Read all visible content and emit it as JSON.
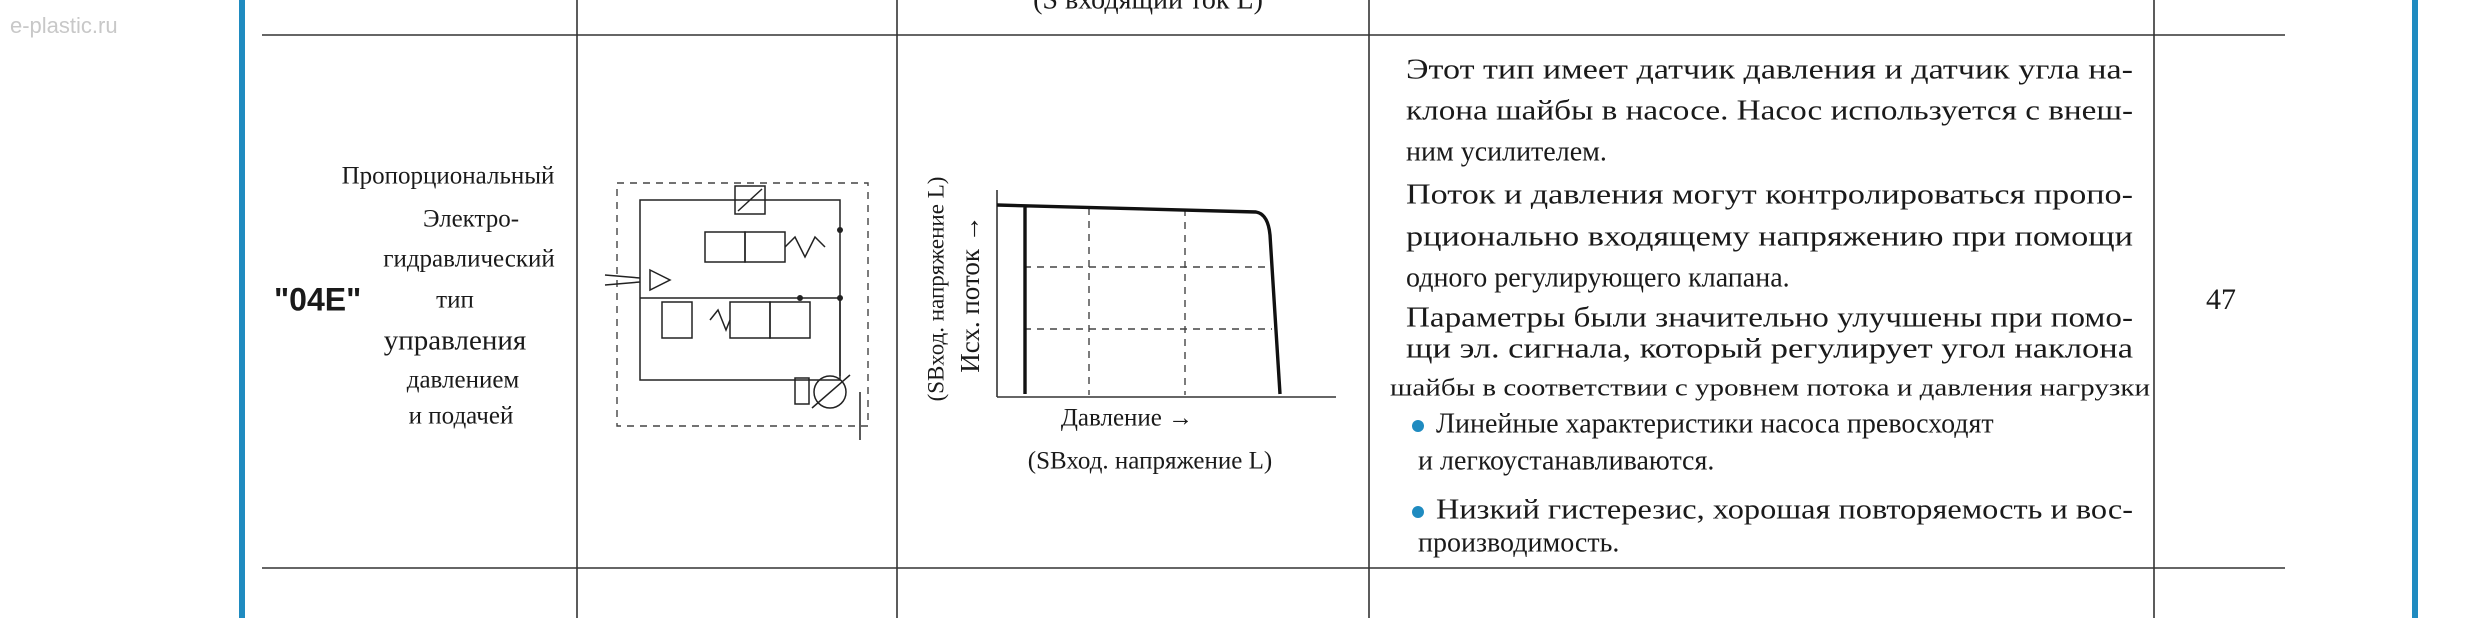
{
  "watermark": "e-plastic.ru",
  "top_row": {
    "graph_caption": "(S входящий ток  L)"
  },
  "row": {
    "code": "\"04E\"",
    "name_lines": [
      "Пропорциональный",
      "Электро-",
      "гидравлический",
      "тип",
      "управления",
      "давлением",
      "и подачей"
    ],
    "chart": {
      "y_label": "Исх. поток →",
      "y_sublabel": "(SВход. напряжение L)",
      "x_label": "Давление →",
      "x_sublabel": "(SВход. напряжение L)"
    },
    "description": {
      "paragraphs": [
        [
          "Этот тип имеет датчик давления и датчик угла на-",
          "клона шайбы в насосе. Насос используется с внеш-",
          "ним усилителем."
        ],
        [
          "Поток и давления могут контролироваться пропо-",
          "рционально входящему напряжению при помощи",
          "одного регулирующего клапана."
        ],
        [
          "Параметры были значительно улучшены при помо-",
          "щи эл. сигнала, который регулирует угол наклона",
          "шайбы в соответствии с уровнем потока и давления нагрузки"
        ]
      ],
      "bullets": [
        [
          "Линейные характеристики насоса превосходят",
          "и легкоустанавливаются."
        ],
        [
          "Низкий гистерезис, хорошая повторяемость и вос-",
          "производимость."
        ]
      ]
    },
    "page": "47"
  }
}
